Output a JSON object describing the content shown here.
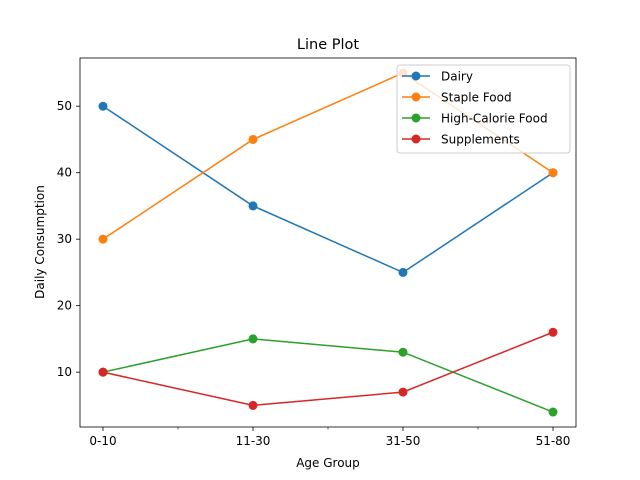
{
  "chart_data": {
    "type": "line",
    "title": "Line Plot",
    "xlabel": "Age Group",
    "ylabel": "Daily Consumption",
    "categories": [
      "0-10",
      "11-30",
      "31-50",
      "51-80"
    ],
    "ylim": [
      1.75,
      57.25
    ],
    "yticks": [
      10,
      20,
      30,
      40,
      50
    ],
    "grid": false,
    "legend_position": "top-right",
    "series": [
      {
        "name": "Dairy",
        "color": "#1f77b4",
        "values": [
          50,
          35,
          25,
          40
        ]
      },
      {
        "name": "Staple Food",
        "color": "#ff7f0e",
        "values": [
          30,
          45,
          55,
          40
        ]
      },
      {
        "name": "High-Calorie Food",
        "color": "#2ca02c",
        "values": [
          10,
          15,
          13,
          4
        ]
      },
      {
        "name": "Supplements",
        "color": "#d62728",
        "values": [
          10,
          5,
          7,
          16
        ]
      }
    ]
  }
}
